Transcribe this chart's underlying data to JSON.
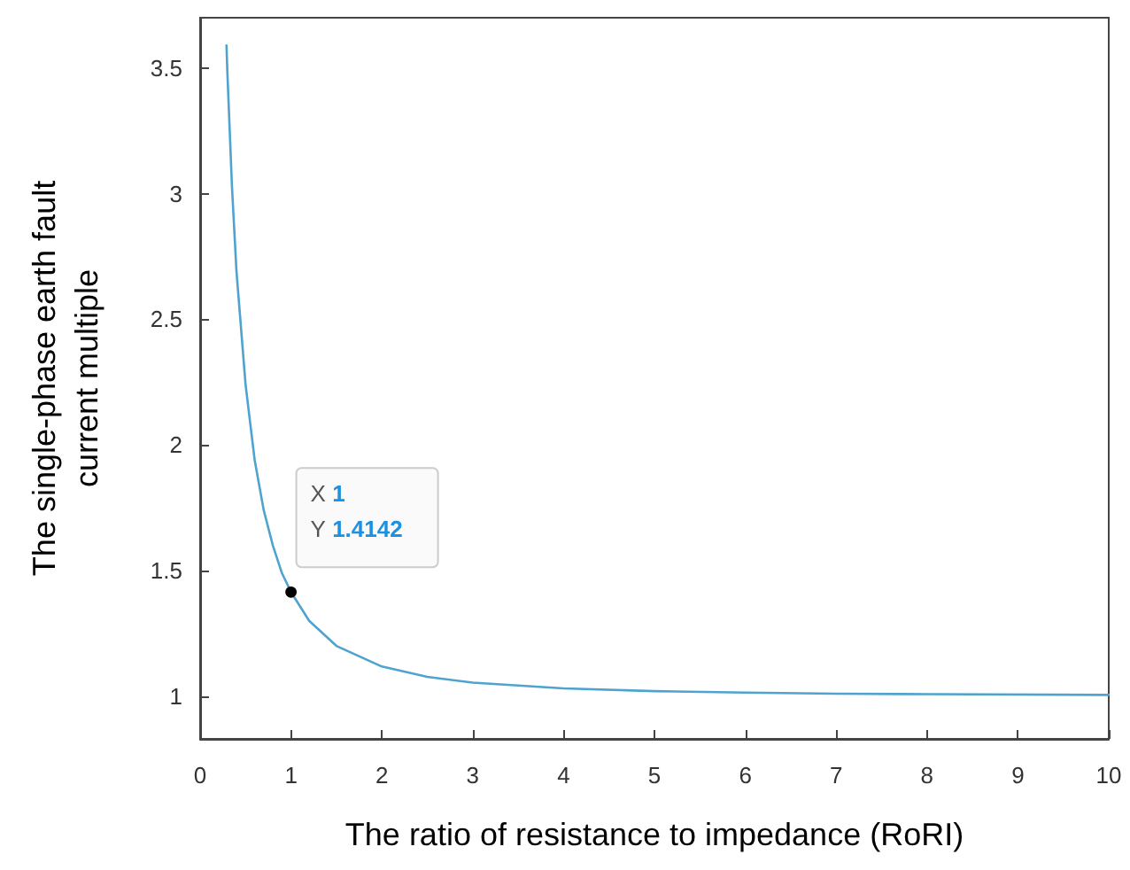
{
  "chart_data": {
    "type": "line",
    "xlabel": "The ratio of resistance to impedance (RoRI)",
    "ylabel": "The single-phase earth fault current multiple",
    "x": [
      0.29,
      0.3,
      0.35,
      0.4,
      0.5,
      0.6,
      0.7,
      0.8,
      0.9,
      1,
      1.2,
      1.5,
      2,
      2.5,
      3,
      4,
      5,
      6,
      7,
      8,
      10
    ],
    "series": [
      {
        "color": "#4fa3cf",
        "values": [
          3.59,
          3.48,
          3.03,
          2.69,
          2.24,
          1.94,
          1.74,
          1.6,
          1.49,
          1.4142,
          1.3,
          1.2,
          1.118,
          1.077,
          1.054,
          1.031,
          1.02,
          1.014,
          1.01,
          1.008,
          1.005
        ]
      }
    ],
    "xlim": [
      0,
      10
    ],
    "xticks": [
      0,
      1,
      2,
      3,
      4,
      5,
      6,
      7,
      8,
      9,
      10
    ],
    "ylim": [
      0.83,
      3.7
    ],
    "yticks": [
      1,
      1.5,
      2,
      2.5,
      3,
      3.5
    ],
    "annotations": [
      {
        "text": "X 1\nY 1.4142",
        "x": 1,
        "y": 1.4142
      }
    ],
    "marker": "none",
    "line_style": "solid"
  }
}
